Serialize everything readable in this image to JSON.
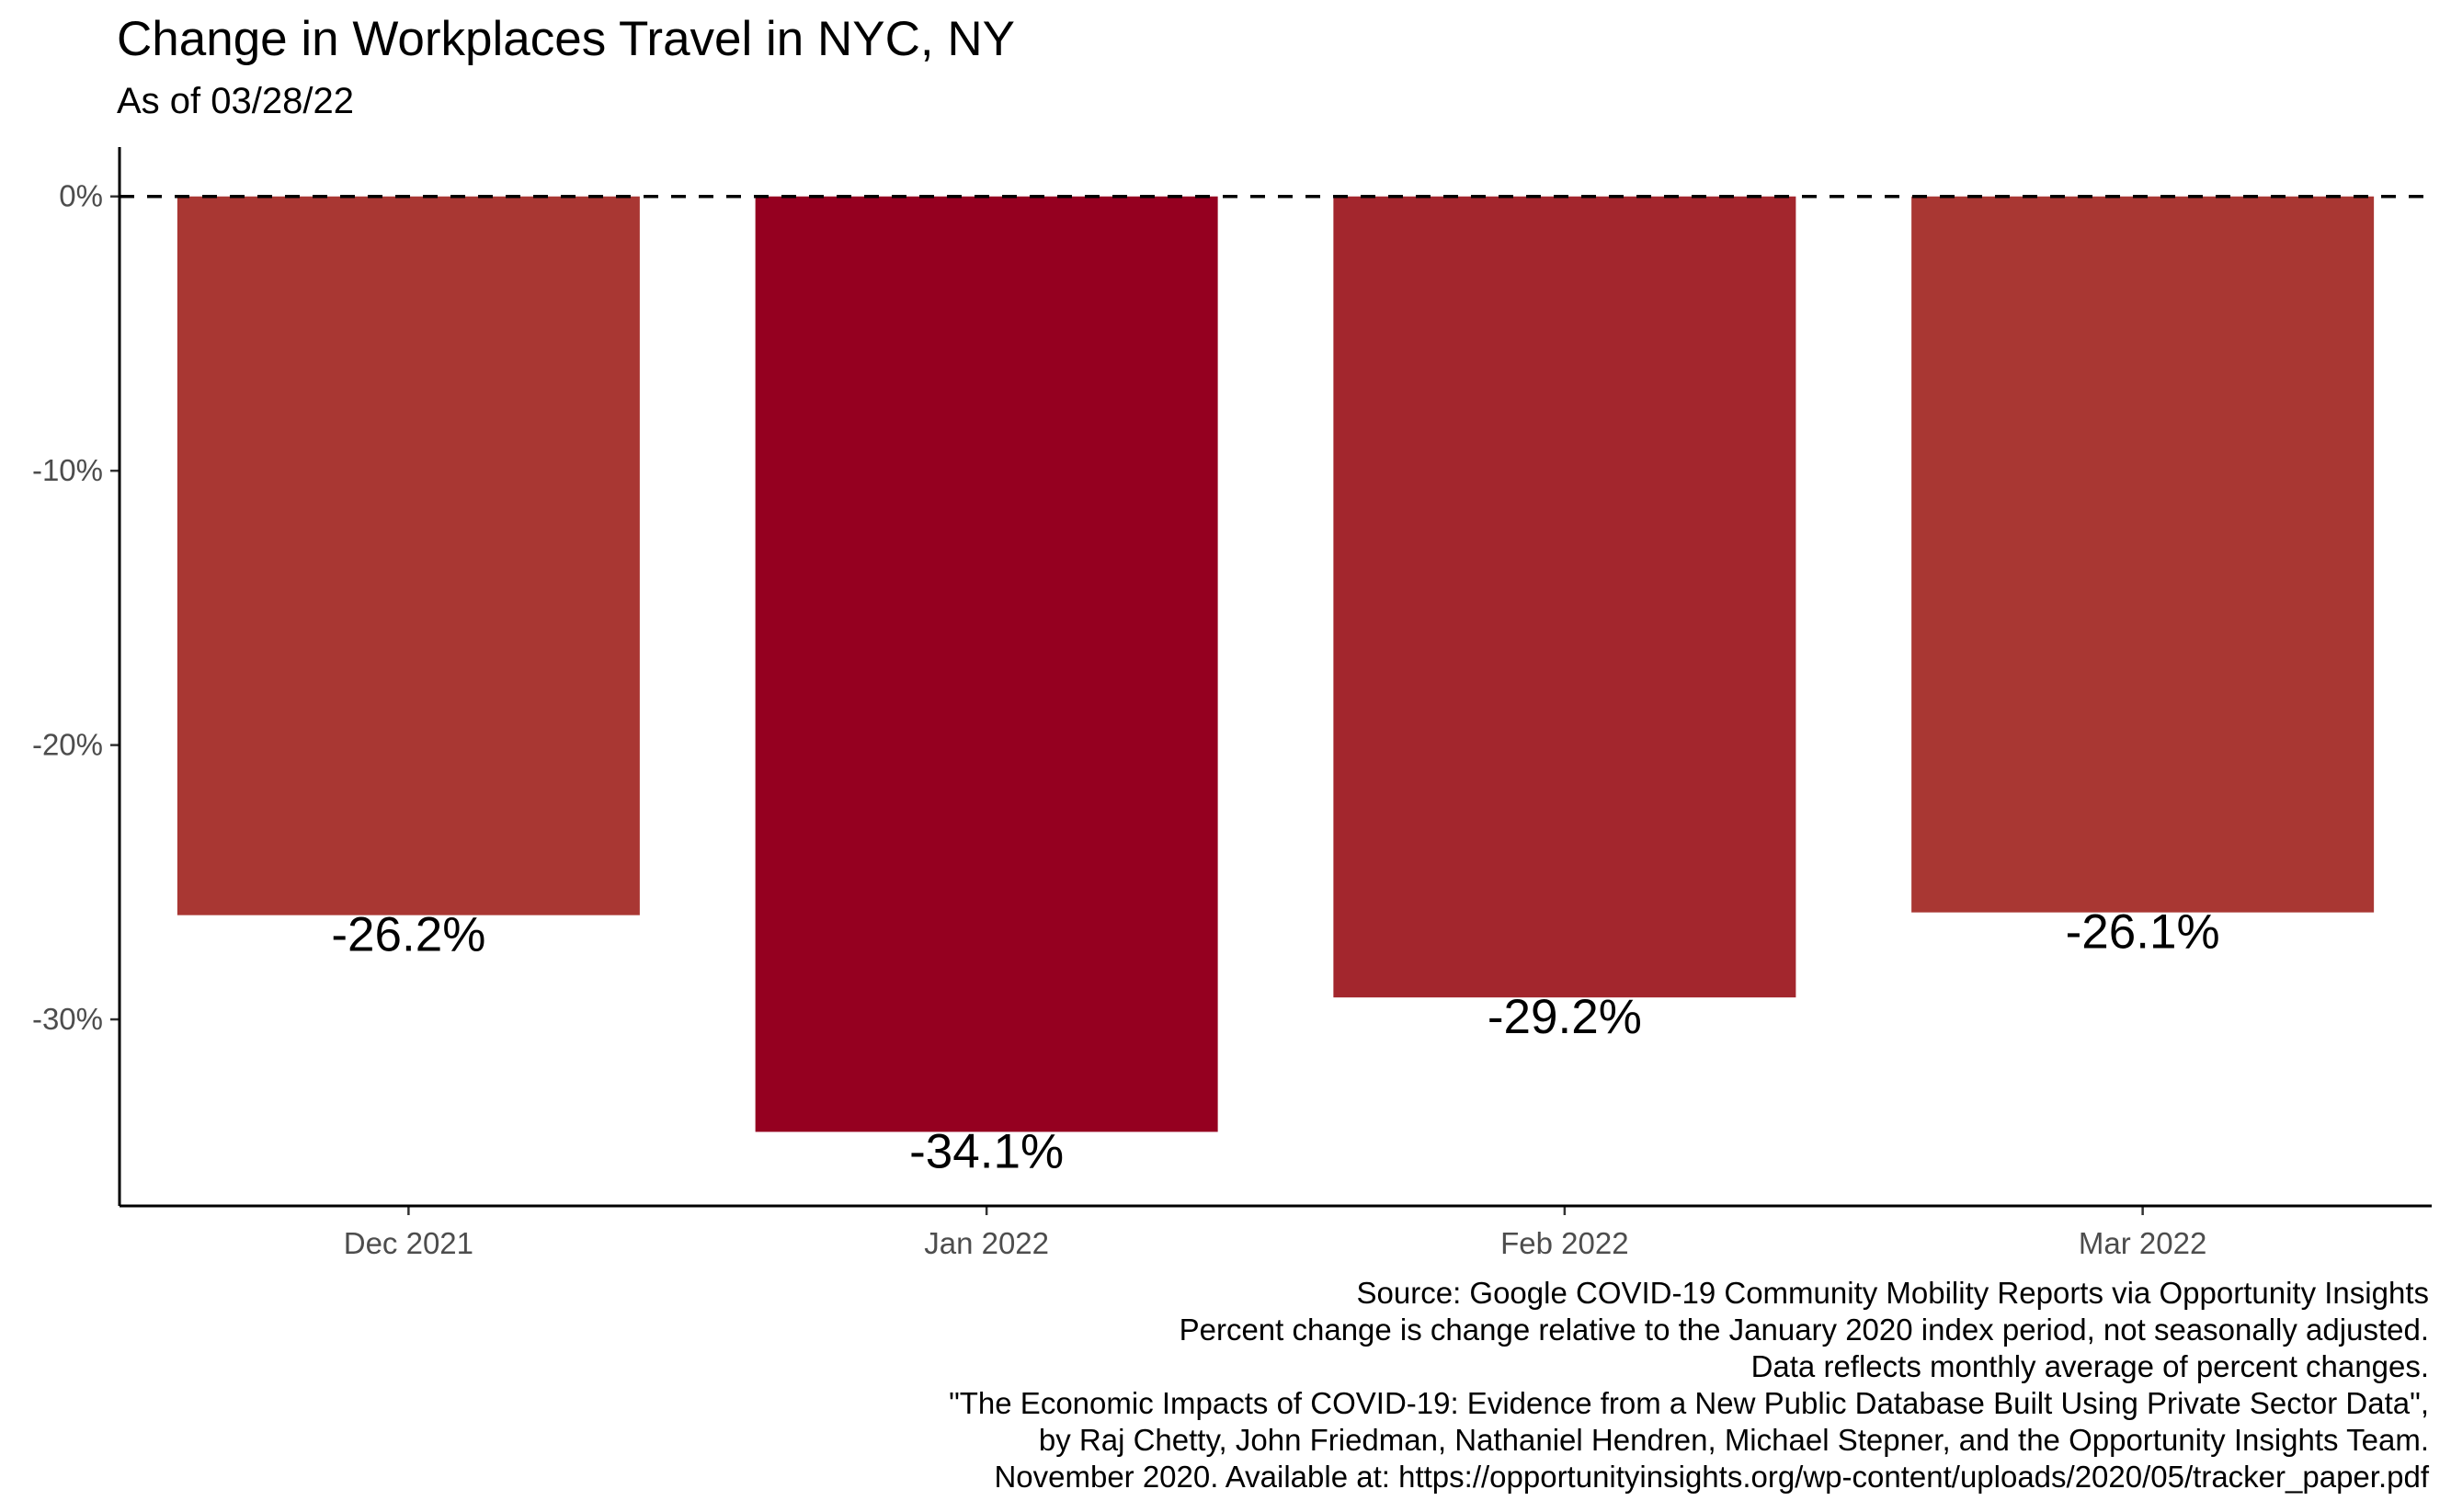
{
  "chart_data": {
    "type": "bar",
    "title": "Change in Workplaces Travel in NYC, NY",
    "subtitle": "As of 03/28/22",
    "xlabel": "",
    "ylabel": "",
    "categories": [
      "Dec 2021",
      "Jan 2022",
      "Feb 2022",
      "Mar 2022"
    ],
    "values": [
      -26.2,
      -34.1,
      -29.2,
      -26.1
    ],
    "data_labels": [
      "-26.2%",
      "-34.1%",
      "-29.2%",
      "-26.1%"
    ],
    "bar_colors": [
      "#A93733",
      "#950020",
      "#A3262D",
      "#A93733"
    ],
    "ylim": [
      -36.8,
      1.8
    ],
    "yticks": [
      0,
      -10,
      -20,
      -30
    ],
    "ytick_labels": [
      "0%",
      "-10%",
      "-20%",
      "-30%"
    ],
    "reference_line": {
      "y": 0,
      "style": "dashed"
    },
    "grid": false,
    "legend": "none",
    "caption": [
      "Source: Google COVID-19 Community Mobility Reports via Opportunity Insights",
      "Percent change is change relative to the January 2020 index period, not seasonally adjusted.",
      "Data reflects monthly average of percent changes.",
      "\"The Economic Impacts of COVID-19: Evidence from a New Public Database Built Using Private Sector Data\",",
      "by Raj Chetty, John Friedman, Nathaniel Hendren, Michael Stepner, and the Opportunity Insights Team.",
      "November 2020. Available at: https://opportunityinsights.org/wp-content/uploads/2020/05/tracker_paper.pdf"
    ]
  }
}
